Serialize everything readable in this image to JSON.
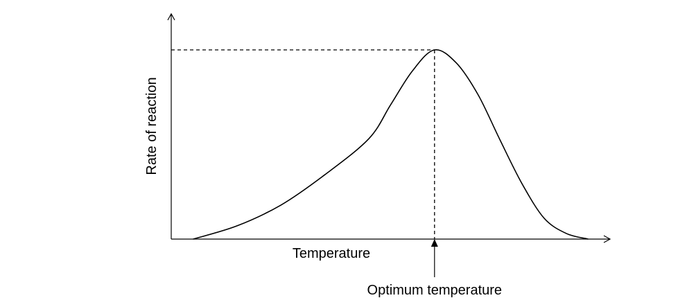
{
  "chart_data": {
    "type": "line",
    "title": "",
    "xlabel": "Temperature",
    "ylabel": "Rate of reaction",
    "annotation": "Optimum temperature",
    "xlim": [
      0,
      100
    ],
    "ylim": [
      0,
      100
    ],
    "grid": false,
    "series": [
      {
        "x": [
          5,
          15,
          25,
          35,
          45,
          50,
          55,
          60,
          65,
          70,
          75,
          80,
          85,
          90,
          95
        ],
        "y": [
          0,
          7,
          18,
          34,
          53,
          71,
          89,
          100,
          93,
          76,
          52,
          29,
          11,
          3,
          0
        ]
      }
    ],
    "optimum": {
      "x": 60,
      "y": 100
    }
  }
}
